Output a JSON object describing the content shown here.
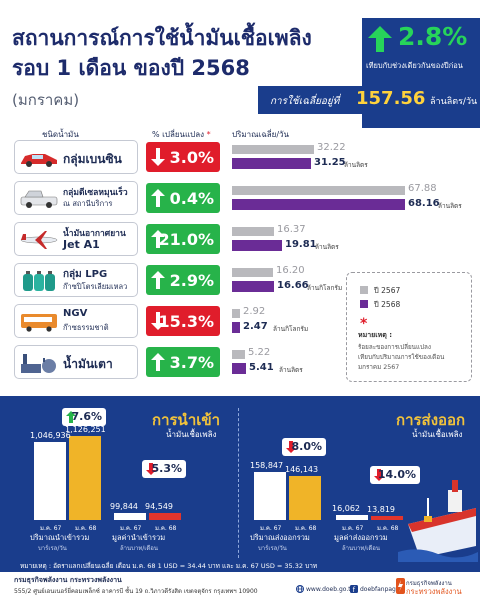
{
  "header": {
    "title_line1": "สถานการณ์การใช้น้ำมันเชื้อเพลิง",
    "title_line2": "รอบ 1 เดือน ของปี 2568",
    "title_line3": "(มกราคม)",
    "change_pct": "2.8%",
    "change_caption": "เทียบกับช่วงเดียวกันของปีก่อน",
    "avg_label": "การใช้เฉลี่ยอยู่ที่",
    "avg_value": "157.56",
    "avg_unit": "ล้านลิตร/วัน"
  },
  "table_headers": {
    "fuel": "ชนิดน้ำมัน",
    "change": "% เปลี่ยนแปลง",
    "change_star": "*",
    "volume": "ปริมาณเฉลี่ย/วัน"
  },
  "colors": {
    "up": "#27b34a",
    "down": "#e01d2b",
    "prev_bar": "#b9b9bd",
    "cur_bar": "#6a2c96",
    "panel": "#1a3d8c",
    "accent_gold": "#f0b428"
  },
  "fuels": [
    {
      "name": "กลุ่มเบนซิน",
      "sub": "",
      "icon": "car-icon",
      "direction": "down",
      "change": "3.0%",
      "prev": 32.22,
      "prev_label": "32.22",
      "cur": 31.25,
      "cur_label": "31.25",
      "unit": "ล้านลิตร"
    },
    {
      "name": "กลุ่มดีเซลหมุนเร็ว",
      "sub": "ณ สถานีบริการ",
      "icon": "pickup-truck-icon",
      "direction": "up",
      "change": "0.4%",
      "prev": 67.88,
      "prev_label": "67.88",
      "cur": 68.16,
      "cur_label": "68.16",
      "unit": "ล้านลิตร"
    },
    {
      "name": "น้ำมันอากาศยาน",
      "sub": "Jet A1",
      "icon": "airplane-icon",
      "direction": "up",
      "change": "21.0%",
      "prev": 16.37,
      "prev_label": "16.37",
      "cur": 19.81,
      "cur_label": "19.81",
      "unit": "ล้านลิตร"
    },
    {
      "name": "กลุ่ม LPG",
      "sub": "ก๊าซปิโตรเลียมเหลว",
      "icon": "gas-cylinder-icon",
      "direction": "up",
      "change": "2.9%",
      "prev": 16.2,
      "prev_label": "16.20",
      "cur": 16.66,
      "cur_label": "16.66",
      "unit": "ล้านกิโลกรัม"
    },
    {
      "name": "NGV",
      "sub": "ก๊าซธรรมชาติ",
      "icon": "bus-icon",
      "direction": "down",
      "change": "15.3%",
      "prev": 2.92,
      "prev_label": "2.92",
      "cur": 2.47,
      "cur_label": "2.47",
      "unit": "ล้านกิโลกรัม"
    },
    {
      "name": "น้ำมันเตา",
      "sub": "",
      "icon": "factory-icon",
      "direction": "up",
      "change": "3.7%",
      "prev": 5.22,
      "prev_label": "5.22",
      "cur": 5.41,
      "cur_label": "5.41",
      "unit": "ล้านลิตร"
    }
  ],
  "legend": {
    "prev": "ปี 2567",
    "cur": "ปี 2568",
    "note_star": "*",
    "note_title": "หมายเหตุ :",
    "note_lines": [
      "ร้อยละของการเปลี่ยนแปลง",
      "เทียบกับปริมาณการใช้ของเดือน",
      "มกราคม 2567"
    ]
  },
  "import": {
    "title": "การนำเข้า",
    "subtitle": "น้ำมันเชื้อเพลิง",
    "volume": {
      "direction": "up",
      "change": "7.6%",
      "prev_label": "1,046,936",
      "cur_label": "1,126,251",
      "prev": 1046936,
      "cur": 1126251,
      "label": "ปริมาณนำเข้ารวม",
      "sub": "บาร์เรล/วัน"
    },
    "value": {
      "direction": "down",
      "change": "5.3%",
      "prev_label": "99,844",
      "cur_label": "94,549",
      "prev": 99844,
      "cur": 94549,
      "label": "มูลค่านำเข้ารวม",
      "sub": "ล้านบาท/เดือน"
    },
    "x_prev": "ม.ค. 67",
    "x_cur": "ม.ค. 68"
  },
  "export": {
    "title": "การส่งออก",
    "subtitle": "น้ำมันเชื้อเพลิง",
    "volume": {
      "direction": "down",
      "change": "8.0%",
      "prev_label": "158,847",
      "cur_label": "146,143",
      "prev": 158847,
      "cur": 146143,
      "label": "ปริมาณส่งออกรวม",
      "sub": "บาร์เรล/วัน"
    },
    "value": {
      "direction": "down",
      "change": "14.0%",
      "prev_label": "16,062",
      "cur_label": "13,819",
      "prev": 16062,
      "cur": 13819,
      "label": "มูลค่าส่งออกรวม",
      "sub": "ล้านบาท/เดือน"
    },
    "x_prev": "ม.ค. 67",
    "x_cur": "ม.ค. 68"
  },
  "rate_note": "หมายเหตุ : อัตราแลกเปลี่ยนเฉลี่ย เดือน ม.ค. 68 1 USD = 34.44 บาท และ ม.ค. 67 USD = 35.32 บาท",
  "footer": {
    "org": "กรมธุรกิจพลังงาน กระทรวงพลังงาน",
    "address": "555/2 ศูนย์เอนเนอร์ยี่คอมเพล็กซ์ อาคารบี ชั้น 19 ถ.วิภาวดีรังสิต เขตจตุจักร กรุงเทพฯ 10900",
    "web": "www.doeb.go.th",
    "facebook": "doebfanpage",
    "ministry_line1": "กรมธุรกิจพลังงาน",
    "ministry_line2": "กระทรวงพลังงาน"
  }
}
